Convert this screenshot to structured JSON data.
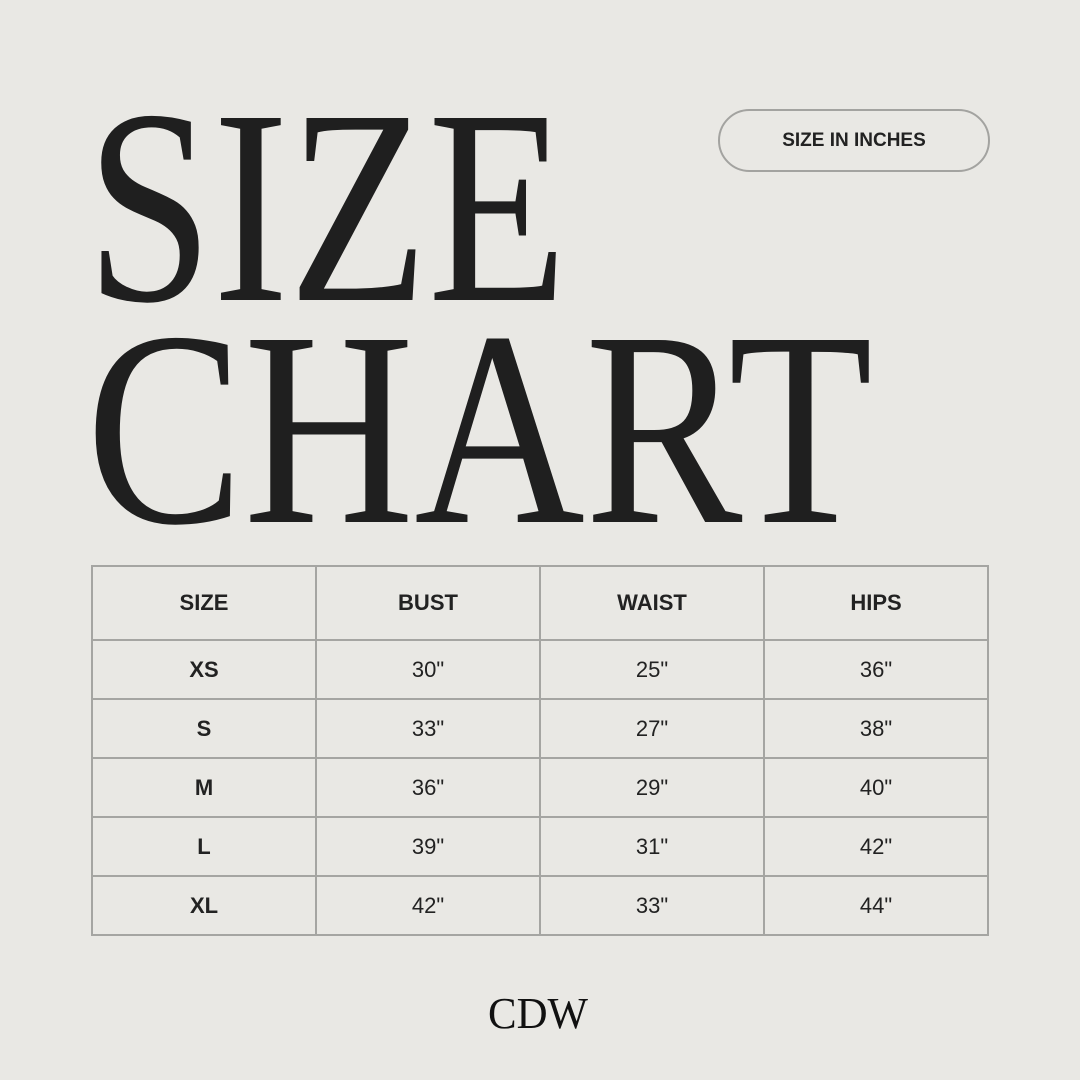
{
  "title": {
    "line1": "SIZE",
    "line2": "CHART"
  },
  "badge": "SIZE IN INCHES",
  "table": {
    "headers": [
      "SIZE",
      "BUST",
      "WAIST",
      "HIPS"
    ],
    "rows": [
      [
        "XS",
        "30\"",
        "25\"",
        "36\""
      ],
      [
        "S",
        "33\"",
        "27\"",
        "38\""
      ],
      [
        "M",
        "36\"",
        "29\"",
        "40\""
      ],
      [
        "L",
        "39\"",
        "31\"",
        "42\""
      ],
      [
        "XL",
        "42\"",
        "33\"",
        "44\""
      ]
    ]
  },
  "logo": "CDW",
  "colors": {
    "background": "#e9e8e4",
    "text": "#1f1f1f",
    "border": "#a5a5a2"
  }
}
